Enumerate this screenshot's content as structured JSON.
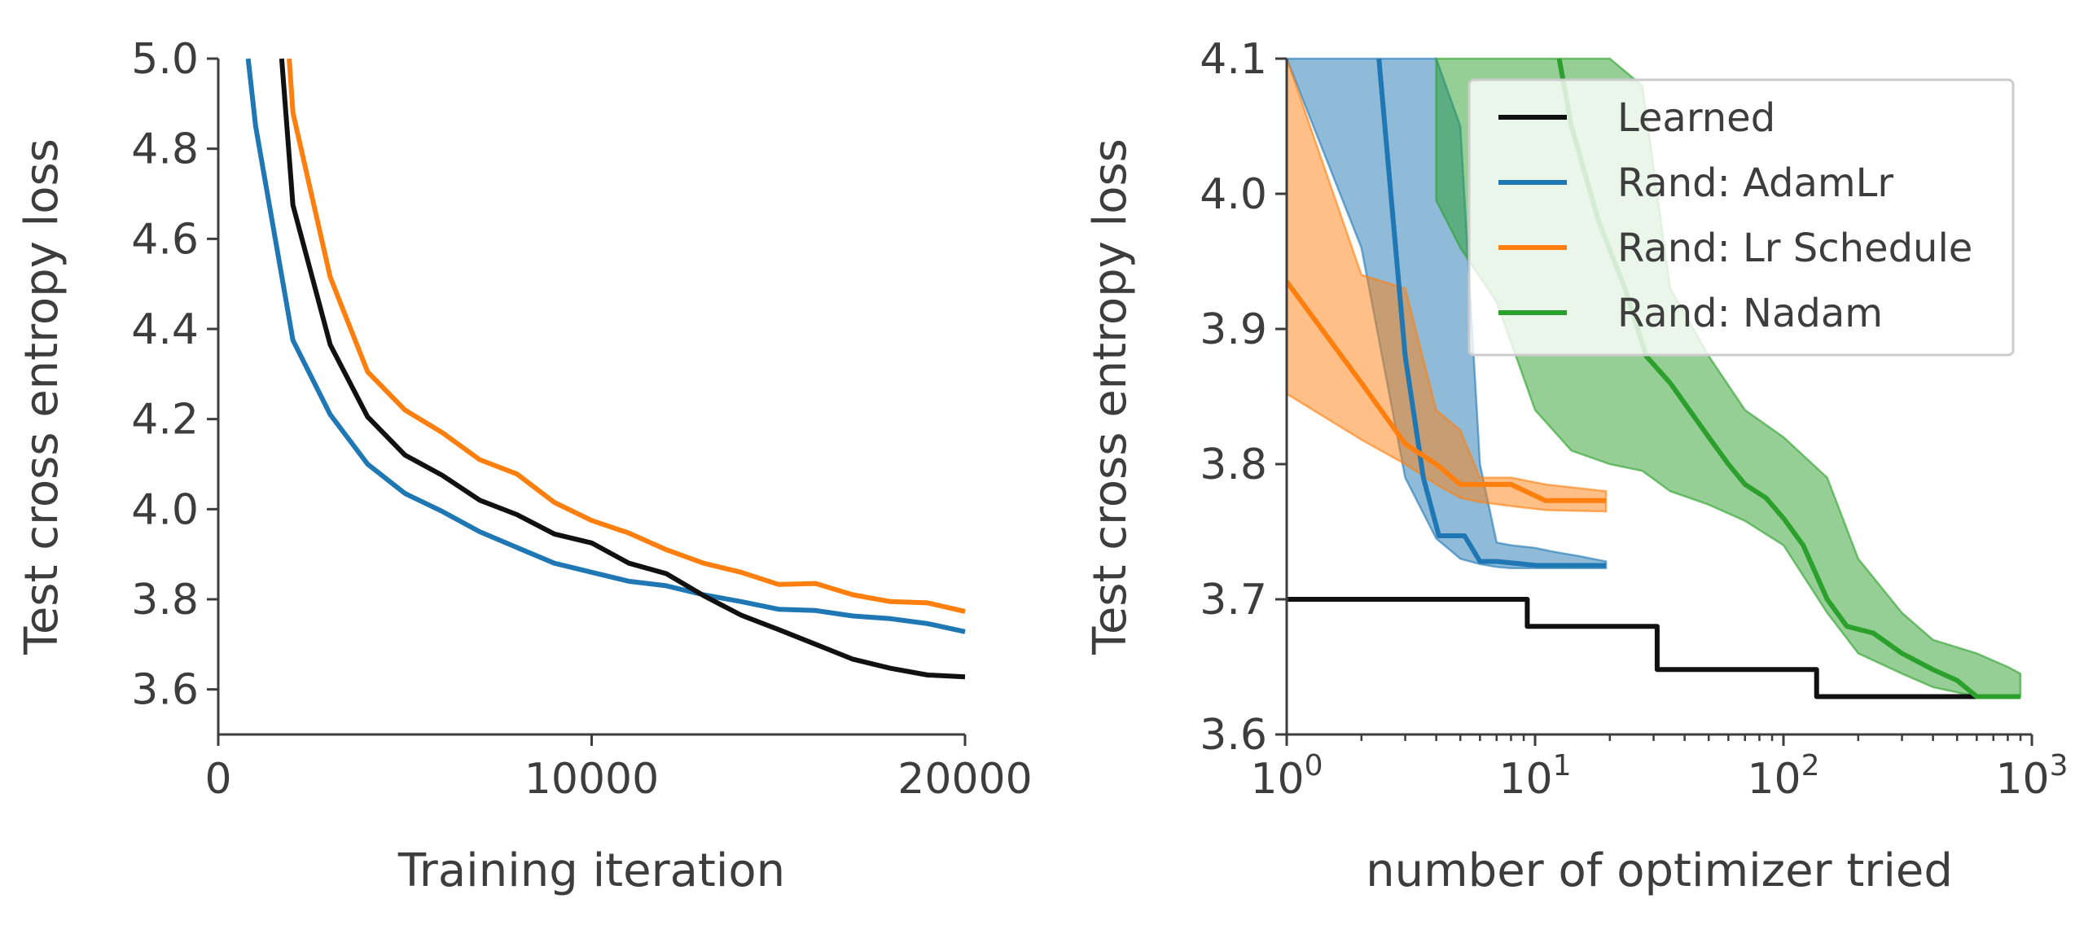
{
  "chart_data": [
    {
      "type": "line",
      "title": "",
      "xlabel": "Training iteration",
      "ylabel": "Test cross entropy loss",
      "xlim": [
        0,
        20000
      ],
      "ylim": [
        3.5,
        5.0
      ],
      "xticks": [
        0,
        10000,
        20000
      ],
      "xtick_labels": [
        "0",
        "10000",
        "20000"
      ],
      "yticks": [
        3.6,
        3.8,
        4.0,
        4.2,
        4.4,
        4.6,
        4.8,
        5.0
      ],
      "ytick_labels": [
        "3.6",
        "3.8",
        "4.0",
        "4.2",
        "4.4",
        "4.6",
        "4.8",
        "5.0"
      ],
      "grid": false,
      "legend": false,
      "series": [
        {
          "color": "#1f77b4",
          "x": [
            800,
            1000,
            2000,
            3000,
            4000,
            5000,
            6000,
            7000,
            8000,
            9000,
            10000,
            11000,
            12000,
            13000,
            14000,
            15000,
            16000,
            17000,
            18000,
            19000,
            20000
          ],
          "y": [
            5.0,
            4.85,
            4.375,
            4.21,
            4.1,
            4.035,
            3.995,
            3.95,
            3.915,
            3.88,
            3.86,
            3.84,
            3.83,
            3.81,
            3.795,
            3.778,
            3.775,
            3.763,
            3.757,
            3.746,
            3.728
          ]
        },
        {
          "color": "#111111",
          "x": [
            1700,
            2000,
            3000,
            4000,
            5000,
            6000,
            7000,
            8000,
            9000,
            10000,
            11000,
            12000,
            13000,
            14000,
            15000,
            16000,
            17000,
            18000,
            19000,
            20000
          ],
          "y": [
            5.0,
            4.675,
            4.365,
            4.205,
            4.12,
            4.075,
            4.02,
            3.988,
            3.945,
            3.925,
            3.88,
            3.857,
            3.808,
            3.765,
            3.733,
            3.7,
            3.667,
            3.647,
            3.632,
            3.628
          ]
        },
        {
          "color": "#ff7f0e",
          "x": [
            1900,
            2000,
            3000,
            4000,
            5000,
            6000,
            7000,
            8000,
            9000,
            10000,
            11000,
            12000,
            13000,
            14000,
            15000,
            16000,
            17000,
            18000,
            19000,
            20000
          ],
          "y": [
            5.0,
            4.88,
            4.515,
            4.305,
            4.22,
            4.17,
            4.11,
            4.078,
            4.015,
            3.975,
            3.947,
            3.91,
            3.88,
            3.86,
            3.833,
            3.835,
            3.81,
            3.795,
            3.792,
            3.773
          ]
        }
      ]
    },
    {
      "type": "line",
      "title": "",
      "xlabel": "number of optimizer tried",
      "ylabel": "Test cross entropy loss",
      "xscale": "log",
      "xlim": [
        1,
        1000
      ],
      "ylim": [
        3.6,
        4.1
      ],
      "xticks": [
        1,
        10,
        100,
        1000
      ],
      "xtick_labels": [
        {
          "base": "10",
          "exp": "0"
        },
        {
          "base": "10",
          "exp": "1"
        },
        {
          "base": "10",
          "exp": "2"
        },
        {
          "base": "10",
          "exp": "3"
        }
      ],
      "yticks": [
        3.6,
        3.7,
        3.8,
        3.9,
        4.0,
        4.1
      ],
      "ytick_labels": [
        "3.6",
        "3.7",
        "3.8",
        "3.9",
        "4.0",
        "4.1"
      ],
      "grid": false,
      "legend": "top-right",
      "series": [
        {
          "name": "Learned",
          "color": "#111111",
          "step": true,
          "x": [
            1,
            9.3,
            9.3,
            31,
            31,
            136,
            136,
            700
          ],
          "y": [
            3.7,
            3.7,
            3.68,
            3.68,
            3.648,
            3.648,
            3.628,
            3.628
          ]
        },
        {
          "name": "Rand: AdamLr",
          "color": "#1f77b4",
          "x": [
            2.35,
            3,
            3.55,
            4.1,
            5.2,
            6.0,
            7.0,
            10.2,
            19.3
          ],
          "y": [
            4.1,
            3.88,
            3.79,
            3.747,
            3.747,
            3.728,
            3.728,
            3.725,
            3.725
          ],
          "band_x": [
            1,
            2,
            3,
            4,
            5,
            6,
            7,
            8,
            10,
            12,
            15,
            19.3
          ],
          "band_lower": [
            4.1,
            3.96,
            3.79,
            3.745,
            3.73,
            3.726,
            3.724,
            3.723,
            3.723,
            3.723,
            3.723,
            3.723
          ],
          "band_upper": [
            4.1,
            4.1,
            4.1,
            4.1,
            4.05,
            3.8,
            3.742,
            3.74,
            3.738,
            3.735,
            3.732,
            3.728
          ]
        },
        {
          "name": "Rand: Lr Schedule",
          "color": "#ff7f0e",
          "x": [
            1,
            2,
            3,
            4,
            5,
            6,
            8,
            11,
            19.3
          ],
          "y": [
            3.935,
            3.86,
            3.815,
            3.8,
            3.785,
            3.785,
            3.785,
            3.773,
            3.773
          ],
          "band_x": [
            1,
            2,
            3,
            4,
            5,
            6,
            8,
            11,
            19.3
          ],
          "band_lower": [
            3.852,
            3.818,
            3.8,
            3.785,
            3.775,
            3.772,
            3.769,
            3.766,
            3.765
          ],
          "band_upper": [
            4.1,
            3.94,
            3.93,
            3.84,
            3.825,
            3.79,
            3.79,
            3.785,
            3.78
          ]
        },
        {
          "name": "Rand: Nadam",
          "color": "#2ca02c",
          "x": [
            12.5,
            14,
            18,
            23,
            28,
            35,
            40,
            50,
            60,
            70,
            85,
            100,
            120,
            150,
            180,
            230,
            300,
            400,
            500,
            600,
            900
          ],
          "y": [
            4.1,
            4.05,
            3.98,
            3.93,
            3.88,
            3.86,
            3.845,
            3.82,
            3.8,
            3.785,
            3.775,
            3.76,
            3.74,
            3.7,
            3.68,
            3.675,
            3.66,
            3.648,
            3.64,
            3.628,
            3.628
          ],
          "band_x": [
            4,
            5,
            7,
            10,
            14,
            20,
            27,
            35,
            50,
            70,
            100,
            150,
            200,
            300,
            400,
            600,
            800,
            900
          ],
          "band_lower": [
            3.995,
            3.96,
            3.92,
            3.84,
            3.81,
            3.8,
            3.795,
            3.78,
            3.77,
            3.758,
            3.74,
            3.69,
            3.66,
            3.645,
            3.635,
            3.628,
            3.628,
            3.628
          ],
          "band_upper": [
            4.1,
            4.1,
            4.1,
            4.1,
            4.1,
            4.1,
            4.08,
            3.93,
            3.88,
            3.84,
            3.82,
            3.79,
            3.73,
            3.69,
            3.67,
            3.66,
            3.65,
            3.645
          ]
        }
      ]
    }
  ]
}
